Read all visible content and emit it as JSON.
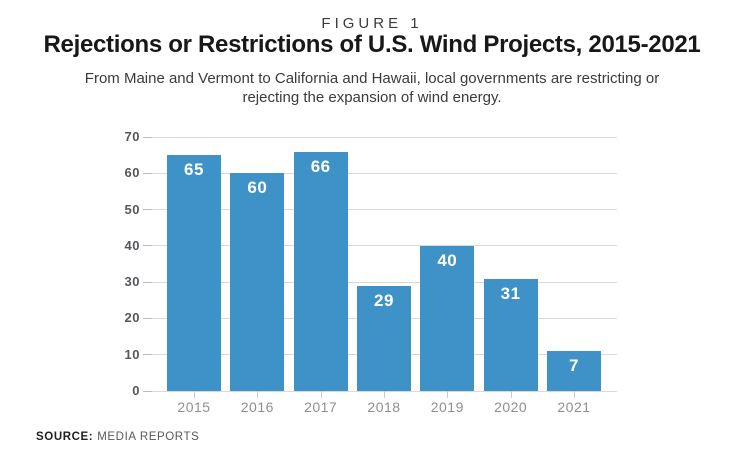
{
  "header": {
    "figure_label": "FIGURE 1",
    "title": "Rejections or Restrictions of U.S. Wind Projects, 2015-2021",
    "subtitle_lines": [
      "From Maine and Vermont to California and Hawaii, local governments are restricting or",
      "rejecting the expansion of wind energy."
    ]
  },
  "chart_data": {
    "type": "bar",
    "title": "Rejections or Restrictions of U.S. Wind Projects, 2015-2021",
    "categories": [
      "2015",
      "2016",
      "2017",
      "2018",
      "2019",
      "2020",
      "2021"
    ],
    "values": [
      65,
      60,
      66,
      29,
      40,
      31,
      7
    ],
    "bar_render_heights": [
      65,
      60,
      66,
      29,
      40,
      31,
      11
    ],
    "xlabel": "",
    "ylabel": "",
    "ylim": [
      0,
      70
    ],
    "y_ticks": [
      0,
      10,
      20,
      30,
      40,
      50,
      60,
      70
    ],
    "grid": "horizontal",
    "legend": "none",
    "data_labels": "inside-top-white"
  },
  "footer": {
    "source_label": "SOURCE:",
    "source_value": "MEDIA REPORTS"
  },
  "colors": {
    "background": "#ffffff",
    "bar": "#3e92c8",
    "data_label": "#ffffff",
    "gridline": "#d9d9d9",
    "tick": "#b9bbbd",
    "tick2": "#c9cacb",
    "y_label": "#55575b",
    "x_label": "#8d8f93",
    "title": "#17181a",
    "subtitle": "#3a3b3d",
    "figure_label": "#3a3b3d",
    "source_label": "#1f2022",
    "source_value": "#58595b"
  }
}
